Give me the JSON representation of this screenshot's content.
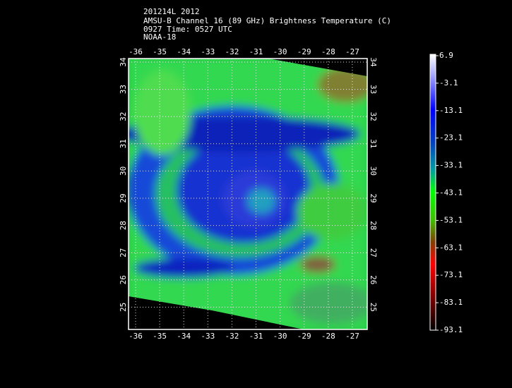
{
  "header": {
    "lines": [
      "201214L 2012",
      "AMSU-B Channel 16 (89 GHz) Brightness Temperature (C)",
      "0927 Time: 0527 UTC",
      "NOAA-18"
    ]
  },
  "map": {
    "longitude_labels": [
      "-36",
      "-35",
      "-34",
      "-33",
      "-32",
      "-31",
      "-30",
      "-29",
      "-28",
      "-27"
    ],
    "latitude_labels": [
      "34",
      "33",
      "32",
      "31",
      "30",
      "29",
      "28",
      "27",
      "26",
      "25"
    ]
  },
  "colorbar": {
    "labels": [
      "6.9",
      "-3.1",
      "-13.1",
      "-23.1",
      "-33.1",
      "-43.1",
      "-53.1",
      "-63.1",
      "-73.1",
      "-83.1",
      "-93.1"
    ]
  }
}
